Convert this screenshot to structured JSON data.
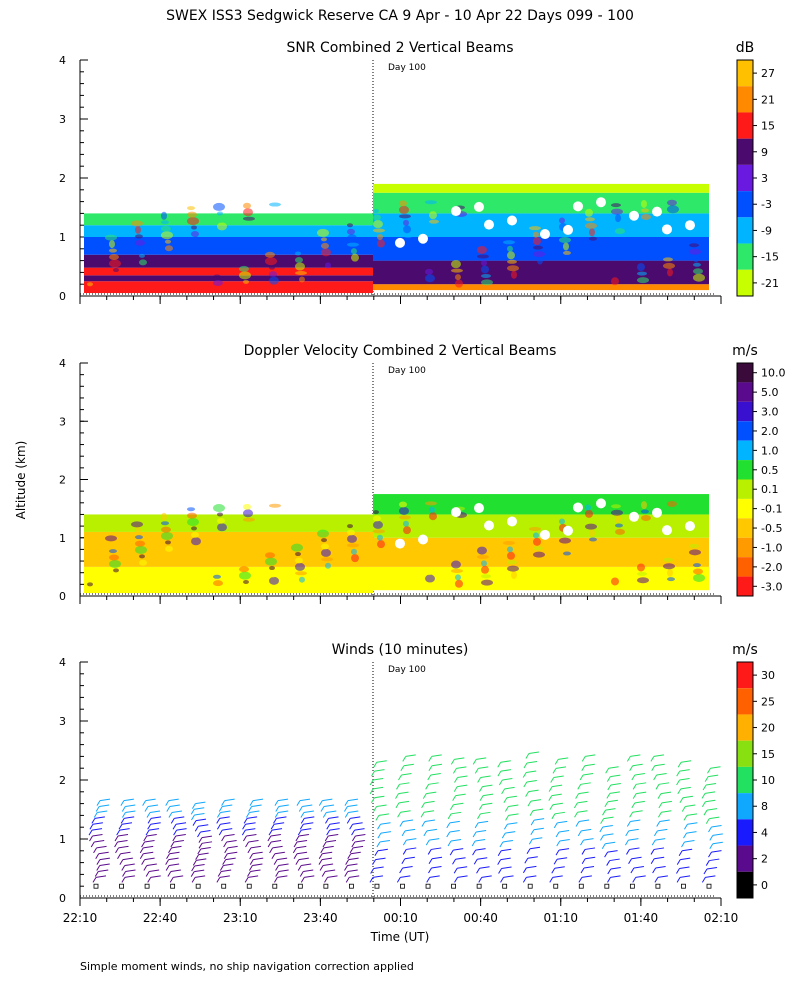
{
  "page_title": "SWEX ISS3 Sedgwick Reserve CA   9 Apr - 10 Apr 22 Days 099 - 100",
  "footnote": "Simple moment winds, no ship navigation correction applied",
  "shared_y_label": "Altitude (km)",
  "shared_x_label": "Time (UT)",
  "day_marker_label": "Day 100",
  "colors": {
    "red": "#ff1a1a",
    "orange_red": "#ff5a00",
    "orange": "#ff9a00",
    "amber": "#ffc000",
    "yellow": "#ffff00",
    "pale_yellow": "#f4ff66",
    "lime": "#c8ff00",
    "yellowgreen": "#a6e61e",
    "green": "#00e64d",
    "lightgreen": "#5cf07a",
    "skyblue": "#00b4ff",
    "blue": "#0050ff",
    "navy": "#1a1aff",
    "purple": "#5a1ab4",
    "darkpurple": "#4b0a6e",
    "black": "#000000"
  },
  "chart_data": [
    {
      "type": "heatmap",
      "title": "SNR Combined 2 Vertical Beams",
      "xlabel": "",
      "ylabel": "Altitude (km)",
      "x_ticks": [
        "22:10",
        "22:40",
        "23:10",
        "23:40",
        "00:10",
        "00:40",
        "01:10",
        "01:40",
        "02:10"
      ],
      "y_ticks": [
        "0",
        "1",
        "2",
        "3",
        "4"
      ],
      "ylim": [
        0,
        4
      ],
      "colorbar_unit": "dB",
      "colorbar_labels": [
        "27",
        "21",
        "15",
        "9",
        "3",
        "-3",
        "-9",
        "-15",
        "-21"
      ],
      "colorbar_colors": [
        "#ffc000",
        "#ff8a00",
        "#ff1a1a",
        "#4b0a6e",
        "#6a1ae0",
        "#0050ff",
        "#00b4ff",
        "#2ee86a",
        "#c8ff00"
      ],
      "layers_before_day100": [
        {
          "from_km": 0.05,
          "to_km": 0.25,
          "level": "15"
        },
        {
          "from_km": 0.25,
          "to_km": 0.35,
          "level": "9"
        },
        {
          "from_km": 0.35,
          "to_km": 0.48,
          "level": "15"
        },
        {
          "from_km": 0.48,
          "to_km": 0.7,
          "level": "9"
        },
        {
          "from_km": 0.7,
          "to_km": 1.0,
          "level": "-3"
        },
        {
          "from_km": 1.0,
          "to_km": 1.2,
          "level": "-9"
        },
        {
          "from_km": 1.2,
          "to_km": 1.4,
          "level": "-15"
        }
      ],
      "layers_after_day100": [
        {
          "from_km": 0.1,
          "to_km": 0.2,
          "level": "21"
        },
        {
          "from_km": 0.2,
          "to_km": 0.6,
          "level": "9"
        },
        {
          "from_km": 0.6,
          "to_km": 1.0,
          "level": "-3"
        },
        {
          "from_km": 1.0,
          "to_km": 1.4,
          "level": "-9"
        },
        {
          "from_km": 1.4,
          "to_km": 1.75,
          "level": "-15"
        },
        {
          "from_km": 1.75,
          "to_km": 1.9,
          "level": "-21"
        }
      ]
    },
    {
      "type": "heatmap",
      "title": "Doppler Velocity Combined 2 Vertical Beams",
      "xlabel": "",
      "ylabel": "Altitude (km)",
      "x_ticks": [
        "22:10",
        "22:40",
        "23:10",
        "23:40",
        "00:10",
        "00:40",
        "01:10",
        "01:40",
        "02:10"
      ],
      "y_ticks": [
        "0",
        "1",
        "2",
        "3",
        "4"
      ],
      "ylim": [
        0,
        4
      ],
      "colorbar_unit": "m/s",
      "colorbar_labels": [
        "10.0",
        "5.0",
        "3.0",
        "2.0",
        "1.0",
        "0.5",
        "0.1",
        "-0.1",
        "-0.5",
        "-1.0",
        "-2.0",
        "-3.0"
      ],
      "colorbar_colors": [
        "#3a0a3a",
        "#5a0a8c",
        "#3a10d0",
        "#0050ff",
        "#00b4ff",
        "#22e030",
        "#b8f000",
        "#ffff00",
        "#ffc800",
        "#ff9a00",
        "#ff6000",
        "#ff1a1a"
      ],
      "layers_before_day100": [
        {
          "from_km": 0.05,
          "to_km": 0.5,
          "level": "-0.1"
        },
        {
          "from_km": 0.5,
          "to_km": 1.1,
          "level": "-0.5"
        },
        {
          "from_km": 1.1,
          "to_km": 1.4,
          "level": "0.1"
        }
      ],
      "layers_after_day100": [
        {
          "from_km": 0.1,
          "to_km": 0.5,
          "level": "-0.1"
        },
        {
          "from_km": 0.5,
          "to_km": 1.0,
          "level": "-0.5"
        },
        {
          "from_km": 1.0,
          "to_km": 1.4,
          "level": "0.1"
        },
        {
          "from_km": 1.4,
          "to_km": 1.75,
          "level": "0.5"
        }
      ]
    },
    {
      "type": "scatter",
      "title": "Winds (10 minutes)",
      "xlabel": "Time (UT)",
      "ylabel": "Altitude (km)",
      "x_ticks": [
        "22:10",
        "22:40",
        "23:10",
        "23:40",
        "00:10",
        "00:40",
        "01:10",
        "01:40",
        "02:10"
      ],
      "y_ticks": [
        "0",
        "1",
        "2",
        "3",
        "4"
      ],
      "ylim": [
        0,
        4
      ],
      "colorbar_unit": "m/s",
      "colorbar_labels": [
        "30",
        "25",
        "20",
        "15",
        "10",
        "8",
        "4",
        "2",
        "0"
      ],
      "colorbar_colors": [
        "#ff1a1a",
        "#ff6000",
        "#ffb000",
        "#88e010",
        "#22e060",
        "#10a8ff",
        "#1a1aff",
        "#5a0a8c",
        "#000000"
      ],
      "profiles_top_km": [
        1.65,
        1.65,
        1.65,
        1.65,
        1.6,
        1.65,
        1.65,
        1.65,
        1.65,
        1.65,
        1.65,
        2.3,
        2.4,
        2.4,
        2.35,
        2.35,
        2.3,
        2.45,
        2.35,
        2.4,
        2.2,
        2.4,
        2.4,
        2.3,
        2.2
      ]
    }
  ]
}
